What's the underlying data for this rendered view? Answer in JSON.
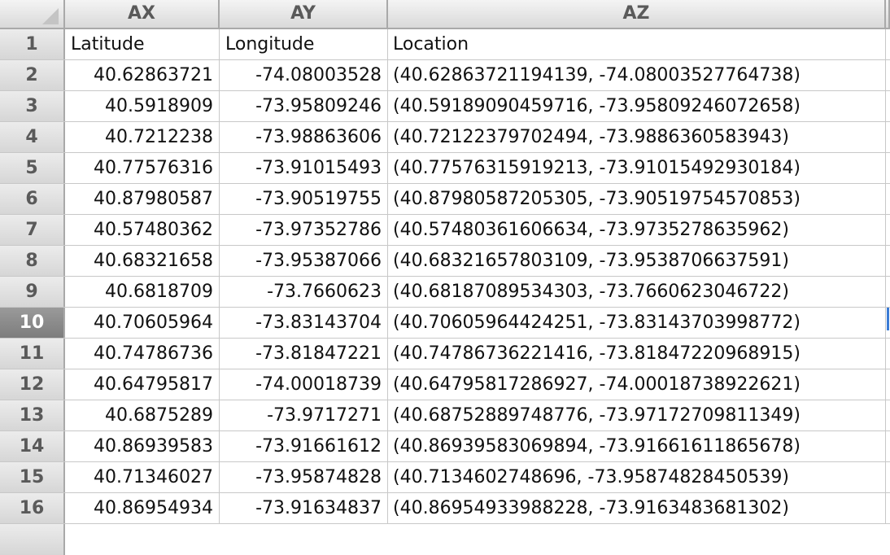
{
  "columns": [
    {
      "id": "ax",
      "label": "AX"
    },
    {
      "id": "ay",
      "label": "AY"
    },
    {
      "id": "az",
      "label": "AZ"
    }
  ],
  "selected_row": "10",
  "rows": [
    {
      "num": "1",
      "lat": "Latitude",
      "lon": "Longitude",
      "loc": "Location"
    },
    {
      "num": "2",
      "lat": "40.62863721",
      "lon": "-74.08003528",
      "loc": "(40.62863721194139, -74.08003527764738)"
    },
    {
      "num": "3",
      "lat": "40.5918909",
      "lon": "-73.95809246",
      "loc": "(40.59189090459716, -73.9580924607265​8)"
    },
    {
      "num": "4",
      "lat": "40.7212238",
      "lon": "-73.98863606",
      "loc": "(40.72122379702494, -73.9886360583943)"
    },
    {
      "num": "5",
      "lat": "40.77576316",
      "lon": "-73.91015493",
      "loc": "(40.77576315919213, -73.91015492930184)"
    },
    {
      "num": "6",
      "lat": "40.87980587",
      "lon": "-73.90519755",
      "loc": "(40.87980587205305, -73.90519754570853)"
    },
    {
      "num": "7",
      "lat": "40.57480362",
      "lon": "-73.97352786",
      "loc": "(40.57480361606634, -73.9735278635962)"
    },
    {
      "num": "8",
      "lat": "40.68321658",
      "lon": "-73.95387066",
      "loc": "(40.68321657803109, -73.9538706637591)"
    },
    {
      "num": "9",
      "lat": "40.6818709",
      "lon": "-73.7660623",
      "loc": "(40.68187089534303, -73.7660623046722)"
    },
    {
      "num": "10",
      "lat": "40.70605964",
      "lon": "-73.83143704",
      "loc": "(40.70605964424251, -73.83143703998772)"
    },
    {
      "num": "11",
      "lat": "40.74786736",
      "lon": "-73.81847221",
      "loc": "(40.74786736221416, -73.81847220968915)"
    },
    {
      "num": "12",
      "lat": "40.64795817",
      "lon": "-74.00018739",
      "loc": "(40.64795817286927, -74.00018738922621)"
    },
    {
      "num": "13",
      "lat": "40.6875289",
      "lon": "-73.9717271",
      "loc": "(40.68752889748776, -73.97172709811349)"
    },
    {
      "num": "14",
      "lat": "40.86939583",
      "lon": "-73.91661612",
      "loc": "(40.86939583069894, -73.91661611865678)"
    },
    {
      "num": "15",
      "lat": "40.71346027",
      "lon": "-73.95874828",
      "loc": "(40.7134602748696, -73.95874828450539)"
    },
    {
      "num": "16",
      "lat": "40.86954934",
      "lon": "-73.91634837",
      "loc": "(40.86954933988228, -73.9163483681302)"
    }
  ]
}
